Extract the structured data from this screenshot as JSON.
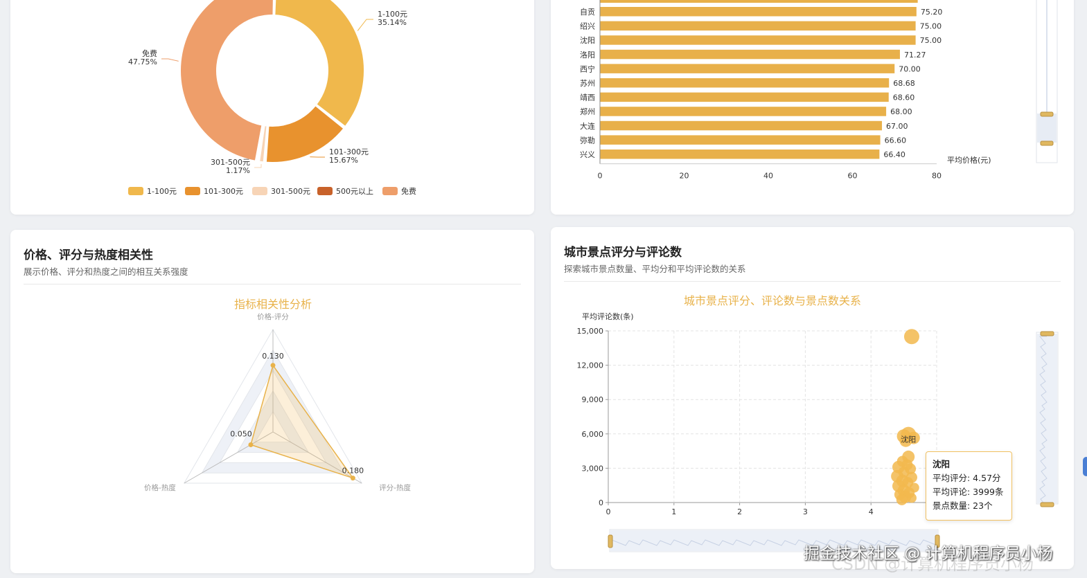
{
  "pie_legend": [
    "1-100元",
    "101-300元",
    "301-500元",
    "500元以上",
    "免费"
  ],
  "radar_card": {
    "title": "价格、评分与热度相关性",
    "subtitle": "展示价格、评分和热度之间的相互关系强度"
  },
  "scatter_card": {
    "title": "城市景点评分与评论数",
    "subtitle": "探索城市景点数量、平均分和平均评论数的关系"
  },
  "tooltip": {
    "title": "沈阳",
    "line1": "平均评分: 4.57分",
    "line2": "平均评论: 3999条",
    "line3": "景点数量: 23个"
  },
  "watermark": "掘金技术社区 @ 计算机程序员小杨",
  "watermark_bg": "CSDN @计算机程序员小杨",
  "colors": {
    "gold": "#f0b84c",
    "orange": "#e8922e",
    "light_peach": "#f7d4b6",
    "dark_orange": "#c8622a",
    "salmon": "#ee9e6a",
    "bar": "#e8b04a",
    "radar_line": "#e8b24a"
  },
  "chart_data": [
    {
      "type": "pie",
      "donut": true,
      "slices": [
        {
          "name": "1-100元",
          "value": 35.14,
          "label": "35.14%"
        },
        {
          "name": "101-300元",
          "value": 15.67,
          "label": "15.67%"
        },
        {
          "name": "301-500元",
          "value": 1.17,
          "label": "1.17%"
        },
        {
          "name": "500元以上",
          "value": 0.27
        },
        {
          "name": "免费",
          "value": 47.75,
          "label": "47.75%"
        }
      ],
      "legend_position": "bottom"
    },
    {
      "type": "bar",
      "orientation": "horizontal",
      "categories": [
        "自贡",
        "绍兴",
        "沈阳",
        "洛阳",
        "西宁",
        "苏州",
        "靖西",
        "郑州",
        "大连",
        "弥勒",
        "兴义"
      ],
      "values": [
        75.2,
        75.0,
        75.0,
        71.27,
        70.0,
        68.68,
        68.6,
        68.0,
        67.0,
        66.6,
        66.4
      ],
      "value_labels": [
        "75.20",
        "75.00",
        "75.00",
        "71.27",
        "70.00",
        "68.68",
        "68.60",
        "68.00",
        "67.00",
        "66.60",
        "66.40"
      ],
      "xlabel": "平均价格(元)",
      "x_ticks": [
        "0",
        "20",
        "40",
        "60",
        "80"
      ],
      "xlim": [
        0,
        80
      ]
    },
    {
      "type": "radar",
      "title": "指标相关性分析",
      "indicators": [
        "价格-评分",
        "评分-热度",
        "价格-热度"
      ],
      "values": [
        0.13,
        0.18,
        0.05
      ],
      "value_labels": [
        "0.130",
        "0.180",
        "0.050"
      ],
      "max": 0.2
    },
    {
      "type": "scatter",
      "title": "城市景点评分、评论数与景点数关系",
      "ylabel": "平均评论数(条)",
      "xlim": [
        0,
        5
      ],
      "ylim": [
        0,
        15000
      ],
      "x_ticks": [
        "0",
        "1",
        "2",
        "3",
        "4"
      ],
      "y_ticks": [
        "0",
        "3,000",
        "6,000",
        "9,000",
        "12,000",
        "15,000"
      ],
      "grid": true,
      "point_label": "沈阳",
      "points": [
        {
          "x": 4.62,
          "y": 14500,
          "r": 11
        },
        {
          "x": 4.57,
          "y": 5950,
          "r": 11
        },
        {
          "x": 4.5,
          "y": 5800,
          "r": 10
        },
        {
          "x": 4.65,
          "y": 5650,
          "r": 9
        },
        {
          "x": 4.53,
          "y": 5400,
          "r": 9
        },
        {
          "x": 4.57,
          "y": 3999,
          "r": 9
        },
        {
          "x": 4.48,
          "y": 3600,
          "r": 8
        },
        {
          "x": 4.55,
          "y": 3300,
          "r": 8
        },
        {
          "x": 4.42,
          "y": 3100,
          "r": 9
        },
        {
          "x": 4.6,
          "y": 2950,
          "r": 8
        },
        {
          "x": 4.5,
          "y": 2650,
          "r": 8
        },
        {
          "x": 4.4,
          "y": 2300,
          "r": 9
        },
        {
          "x": 4.62,
          "y": 2200,
          "r": 8
        },
        {
          "x": 4.48,
          "y": 1900,
          "r": 9
        },
        {
          "x": 4.56,
          "y": 1750,
          "r": 8
        },
        {
          "x": 4.42,
          "y": 1450,
          "r": 9
        },
        {
          "x": 4.66,
          "y": 1300,
          "r": 7
        },
        {
          "x": 4.5,
          "y": 1050,
          "r": 9
        },
        {
          "x": 4.58,
          "y": 850,
          "r": 8
        },
        {
          "x": 4.44,
          "y": 700,
          "r": 8
        },
        {
          "x": 4.52,
          "y": 500,
          "r": 9
        },
        {
          "x": 4.62,
          "y": 400,
          "r": 7
        },
        {
          "x": 4.47,
          "y": 250,
          "r": 8
        }
      ]
    }
  ]
}
